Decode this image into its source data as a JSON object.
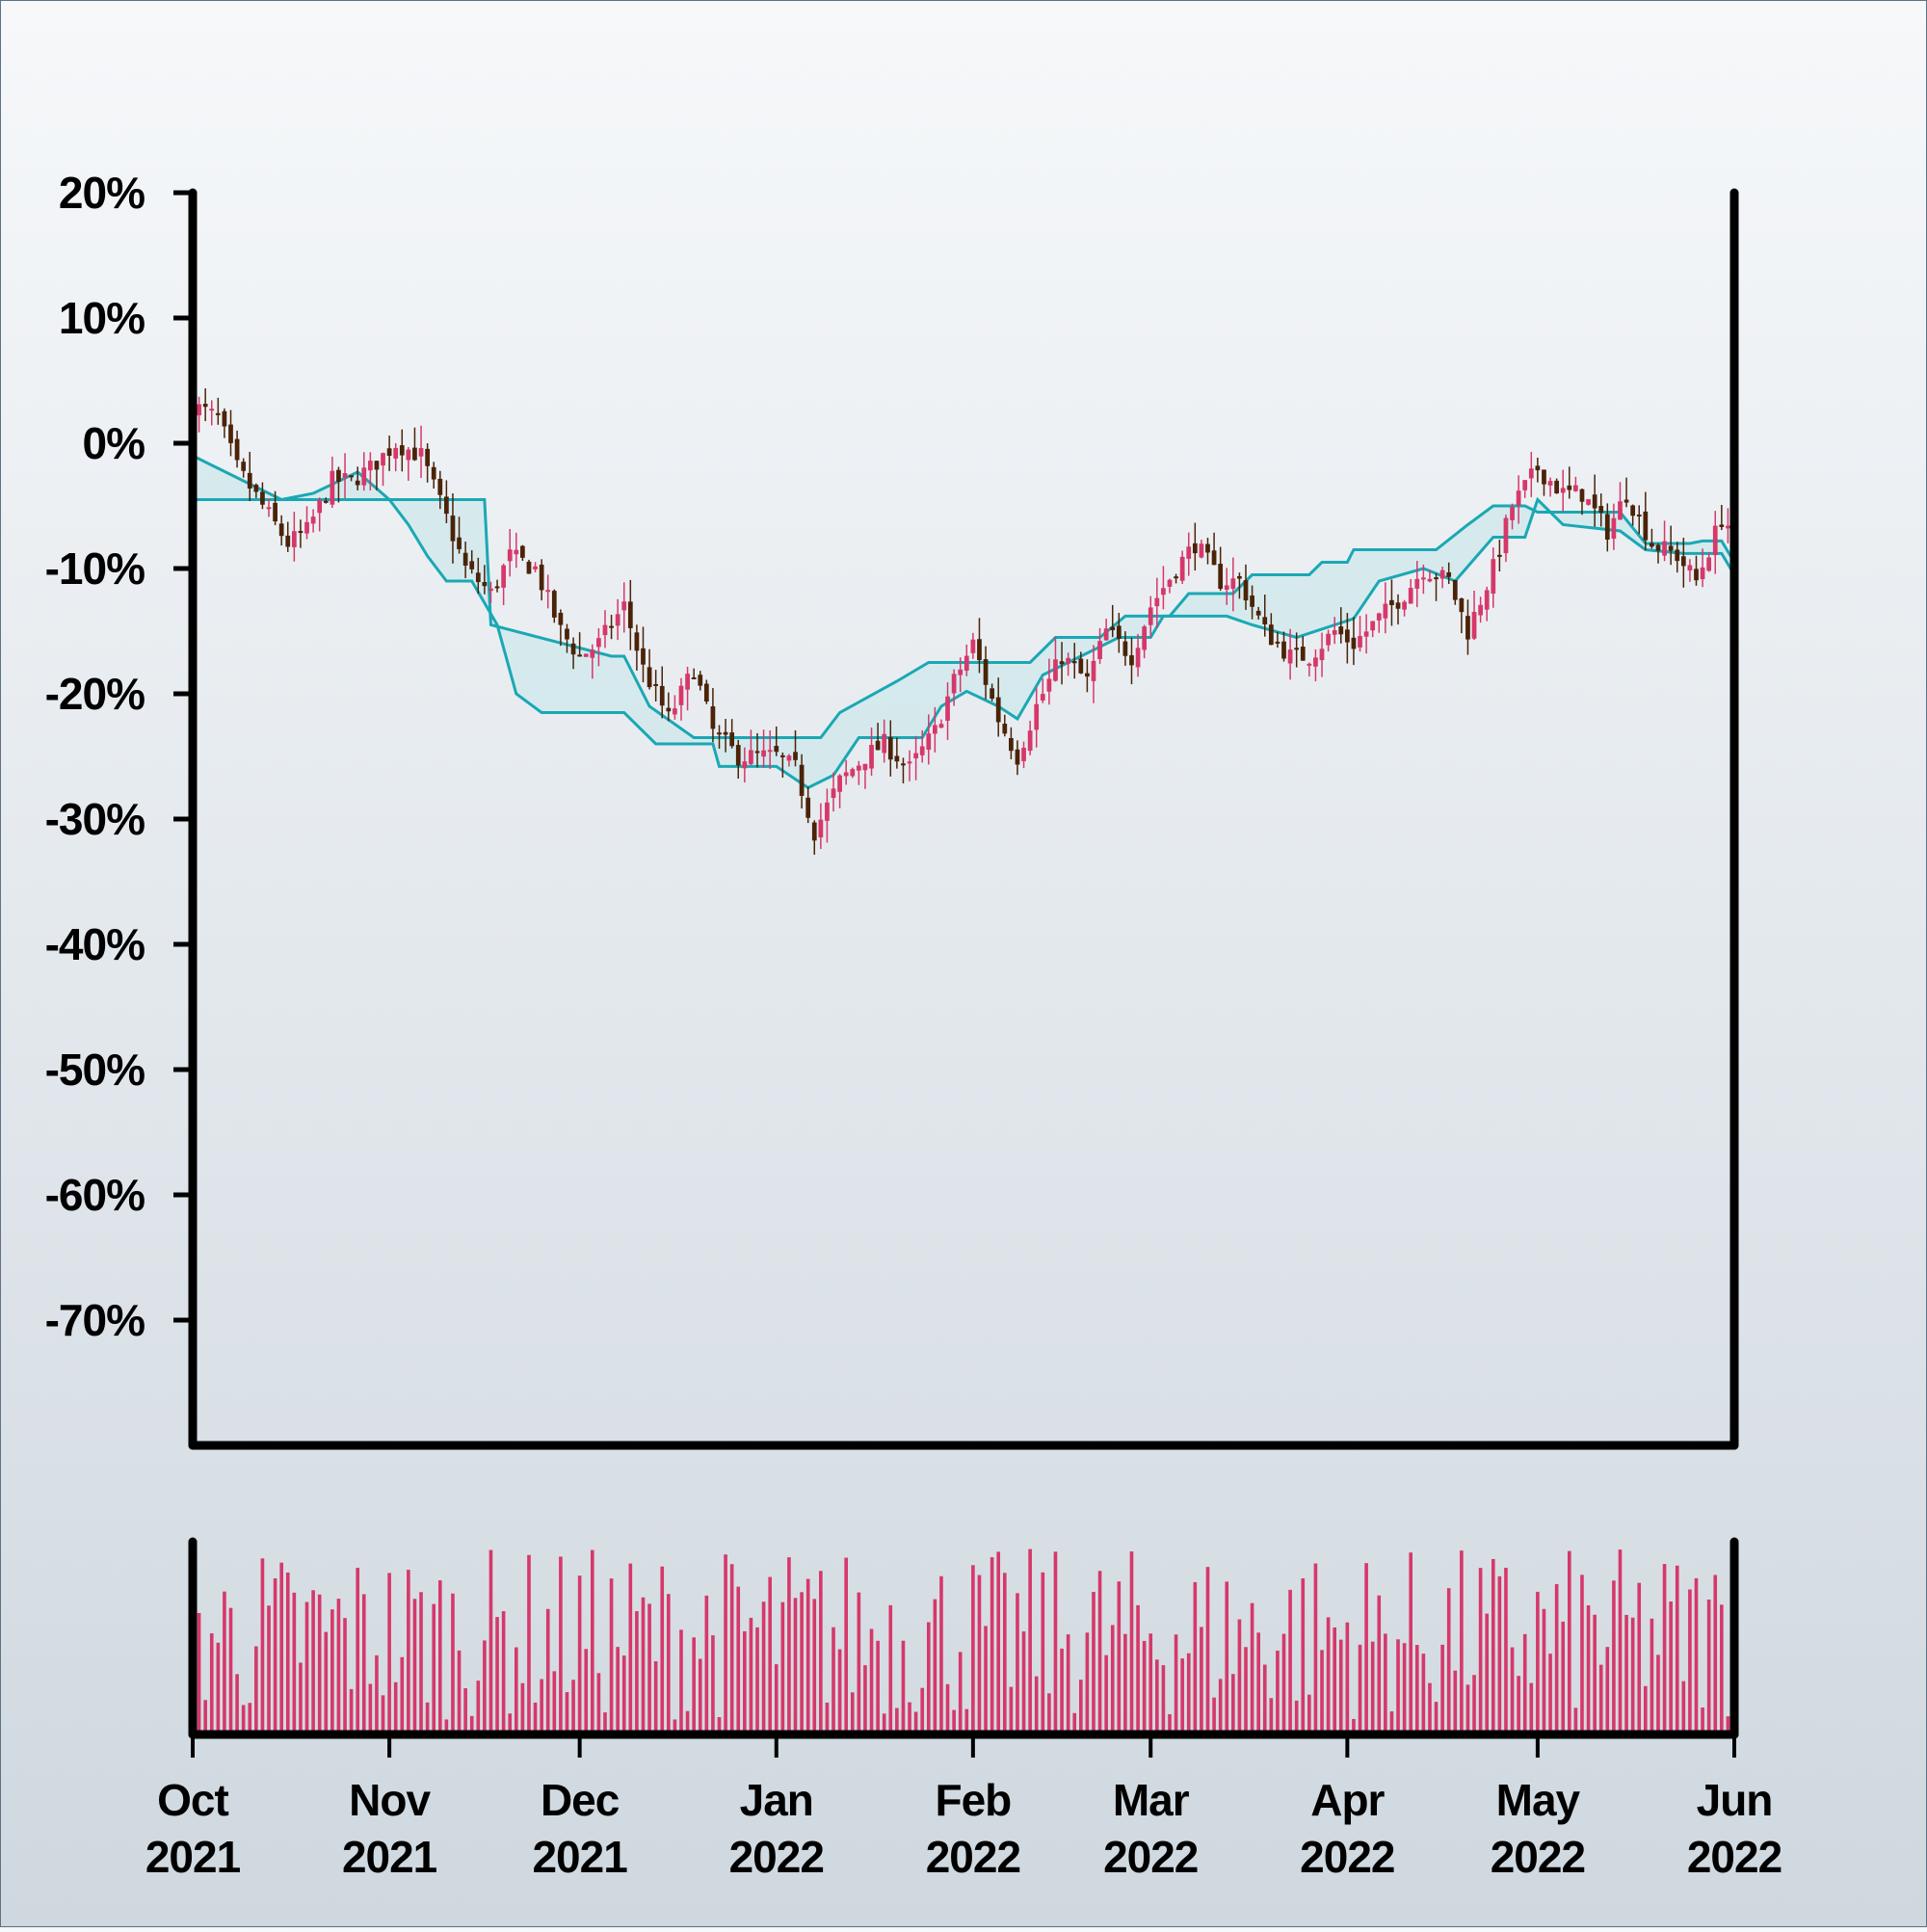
{
  "chart_data": [
    {
      "type": "candlestick",
      "title": "",
      "xlabel": "",
      "ylabel": "",
      "x_range": [
        "2021-10-01",
        "2022-06-01"
      ],
      "ylim": [
        -80,
        20
      ],
      "yticks": [
        20,
        10,
        0,
        -10,
        -20,
        -30,
        -40,
        -50,
        -60,
        -70
      ],
      "ytick_labels": [
        "20%",
        "10%",
        "0%",
        "-10%",
        "-20%",
        "-30%",
        "-40%",
        "-50%",
        "-60%",
        "-70%"
      ],
      "grid": false,
      "colors": {
        "up": "#d6386a",
        "down": "#4a2308",
        "band": "#1aa8b4",
        "band_fill": "#cfe8ec"
      },
      "price_path": [
        [
          "2021-10-01",
          3
        ],
        [
          "2021-10-05",
          2
        ],
        [
          "2021-10-08",
          -2
        ],
        [
          "2021-10-12",
          -5
        ],
        [
          "2021-10-16",
          -8
        ],
        [
          "2021-10-19",
          -7
        ],
        [
          "2021-10-23",
          -3
        ],
        [
          "2021-10-26",
          -3
        ],
        [
          "2021-10-29",
          -2
        ],
        [
          "2021-11-02",
          0
        ],
        [
          "2021-11-06",
          -1
        ],
        [
          "2021-11-10",
          -6
        ],
        [
          "2021-11-13",
          -10
        ],
        [
          "2021-11-17",
          -12
        ],
        [
          "2021-11-20",
          -9
        ],
        [
          "2021-11-24",
          -10
        ],
        [
          "2021-11-28",
          -15
        ],
        [
          "2021-12-01",
          -17
        ],
        [
          "2021-12-04",
          -16
        ],
        [
          "2021-12-08",
          -13
        ],
        [
          "2021-12-11",
          -18
        ],
        [
          "2021-12-15",
          -22
        ],
        [
          "2021-12-19",
          -18
        ],
        [
          "2021-12-22",
          -23
        ],
        [
          "2021-12-26",
          -25
        ],
        [
          "2022-01-01",
          -25
        ],
        [
          "2022-01-04",
          -26
        ],
        [
          "2022-01-07",
          -31
        ],
        [
          "2022-01-11",
          -27
        ],
        [
          "2022-01-15",
          -25
        ],
        [
          "2022-01-18",
          -24
        ],
        [
          "2022-01-22",
          -26
        ],
        [
          "2022-01-26",
          -23
        ],
        [
          "2022-01-29",
          -19
        ],
        [
          "2022-02-01",
          -16
        ],
        [
          "2022-02-05",
          -22
        ],
        [
          "2022-02-08",
          -25
        ],
        [
          "2022-02-11",
          -21
        ],
        [
          "2022-02-15",
          -17
        ],
        [
          "2022-02-19",
          -19
        ],
        [
          "2022-02-22",
          -15
        ],
        [
          "2022-02-26",
          -17
        ],
        [
          "2022-03-01",
          -13
        ],
        [
          "2022-03-05",
          -10
        ],
        [
          "2022-03-08",
          -8
        ],
        [
          "2022-03-12",
          -11
        ],
        [
          "2022-03-15",
          -11
        ],
        [
          "2022-03-19",
          -15
        ],
        [
          "2022-03-23",
          -17
        ],
        [
          "2022-03-26",
          -17
        ],
        [
          "2022-03-30",
          -15
        ],
        [
          "2022-04-02",
          -16
        ],
        [
          "2022-04-06",
          -14
        ],
        [
          "2022-04-10",
          -12
        ],
        [
          "2022-04-13",
          -10
        ],
        [
          "2022-04-17",
          -11
        ],
        [
          "2022-04-20",
          -15
        ],
        [
          "2022-04-24",
          -10
        ],
        [
          "2022-04-27",
          -5
        ],
        [
          "2022-05-01",
          -2
        ],
        [
          "2022-05-05",
          -4
        ],
        [
          "2022-05-08",
          -4
        ],
        [
          "2022-05-12",
          -7
        ],
        [
          "2022-05-15",
          -4
        ],
        [
          "2022-05-19",
          -8
        ],
        [
          "2022-05-23",
          -9
        ],
        [
          "2022-05-26",
          -11
        ],
        [
          "2022-05-30",
          -6
        ],
        [
          "2022-06-01",
          -7
        ]
      ],
      "band_upper": [
        [
          "2021-10-01",
          -1
        ],
        [
          "2021-10-15",
          -4.5
        ],
        [
          "2021-10-20",
          -4
        ],
        [
          "2021-10-27",
          -2.3
        ],
        [
          "2021-11-01",
          -4.5
        ],
        [
          "2021-11-16",
          -4.5
        ],
        [
          "2021-11-17",
          -14.5
        ],
        [
          "2021-12-06",
          -17
        ],
        [
          "2021-12-08",
          -17
        ],
        [
          "2021-12-12",
          -21
        ],
        [
          "2021-12-19",
          -23.5
        ],
        [
          "2022-01-08",
          -23.5
        ],
        [
          "2022-01-11",
          -21.5
        ],
        [
          "2022-01-20",
          -19
        ],
        [
          "2022-01-25",
          -17.5
        ],
        [
          "2022-02-10",
          -17.5
        ],
        [
          "2022-02-14",
          -15.5
        ],
        [
          "2022-02-21",
          -15.5
        ],
        [
          "2022-02-25",
          -13.8
        ],
        [
          "2022-03-04",
          -13.8
        ],
        [
          "2022-03-07",
          -12
        ],
        [
          "2022-03-14",
          -12
        ],
        [
          "2022-03-17",
          -10.5
        ],
        [
          "2022-03-26",
          -10.5
        ],
        [
          "2022-03-28",
          -9.5
        ],
        [
          "2022-04-01",
          -9.5
        ],
        [
          "2022-04-02",
          -8.5
        ],
        [
          "2022-04-15",
          -8.5
        ],
        [
          "2022-04-20",
          -6.5
        ],
        [
          "2022-04-24",
          -5
        ],
        [
          "2022-04-29",
          -5
        ],
        [
          "2022-05-01",
          -5.5
        ],
        [
          "2022-05-14",
          -5.5
        ],
        [
          "2022-05-18",
          -8
        ],
        [
          "2022-05-25",
          -8
        ],
        [
          "2022-05-27",
          -7.8
        ],
        [
          "2022-05-30",
          -7.8
        ],
        [
          "2022-06-01",
          -9.5
        ]
      ],
      "band_lower": [
        [
          "2021-10-01",
          -4.5
        ],
        [
          "2021-11-01",
          -4.5
        ],
        [
          "2021-11-04",
          -6.5
        ],
        [
          "2021-11-07",
          -9
        ],
        [
          "2021-11-10",
          -11
        ],
        [
          "2021-11-14",
          -11
        ],
        [
          "2021-11-18",
          -14.5
        ],
        [
          "2021-11-21",
          -20
        ],
        [
          "2021-11-25",
          -21.5
        ],
        [
          "2021-12-08",
          -21.5
        ],
        [
          "2021-12-13",
          -24
        ],
        [
          "2021-12-22",
          -24
        ],
        [
          "2021-12-23",
          -25.8
        ],
        [
          "2022-01-01",
          -25.8
        ],
        [
          "2022-01-06",
          -27.5
        ],
        [
          "2022-01-10",
          -26.5
        ],
        [
          "2022-01-14",
          -23.5
        ],
        [
          "2022-01-24",
          -23.5
        ],
        [
          "2022-01-27",
          -21
        ],
        [
          "2022-01-31",
          -19.8
        ],
        [
          "2022-02-05",
          -21
        ],
        [
          "2022-02-08",
          -22
        ],
        [
          "2022-02-12",
          -18.5
        ],
        [
          "2022-02-16",
          -17.5
        ],
        [
          "2022-02-24",
          -15.5
        ],
        [
          "2022-03-01",
          -15.5
        ],
        [
          "2022-03-03",
          -13.8
        ],
        [
          "2022-03-13",
          -13.8
        ],
        [
          "2022-03-17",
          -14.5
        ],
        [
          "2022-03-24",
          -15.5
        ],
        [
          "2022-04-02",
          -14
        ],
        [
          "2022-04-06",
          -11
        ],
        [
          "2022-04-13",
          -10
        ],
        [
          "2022-04-18",
          -11
        ],
        [
          "2022-04-24",
          -7.5
        ],
        [
          "2022-04-29",
          -7.5
        ],
        [
          "2022-05-01",
          -4.5
        ],
        [
          "2022-05-05",
          -6.5
        ],
        [
          "2022-05-14",
          -7
        ],
        [
          "2022-05-18",
          -8.5
        ],
        [
          "2022-05-24",
          -8.8
        ],
        [
          "2022-05-30",
          -8.8
        ],
        [
          "2022-06-01",
          -10.5
        ]
      ],
      "volume": {
        "unit": "relative (0-1)",
        "min": 0.08,
        "max": 1.0
      },
      "xticks": [
        {
          "date": "2021-10-01",
          "month": "Oct",
          "year": "2021"
        },
        {
          "date": "2021-11-01",
          "month": "Nov",
          "year": "2021"
        },
        {
          "date": "2021-12-01",
          "month": "Dec",
          "year": "2021"
        },
        {
          "date": "2022-01-01",
          "month": "Jan",
          "year": "2022"
        },
        {
          "date": "2022-02-01",
          "month": "Feb",
          "year": "2022"
        },
        {
          "date": "2022-03-01",
          "month": "Mar",
          "year": "2022"
        },
        {
          "date": "2022-04-01",
          "month": "Apr",
          "year": "2022"
        },
        {
          "date": "2022-05-01",
          "month": "May",
          "year": "2022"
        },
        {
          "date": "2022-06-01",
          "month": "Jun",
          "year": "2022"
        }
      ]
    }
  ]
}
